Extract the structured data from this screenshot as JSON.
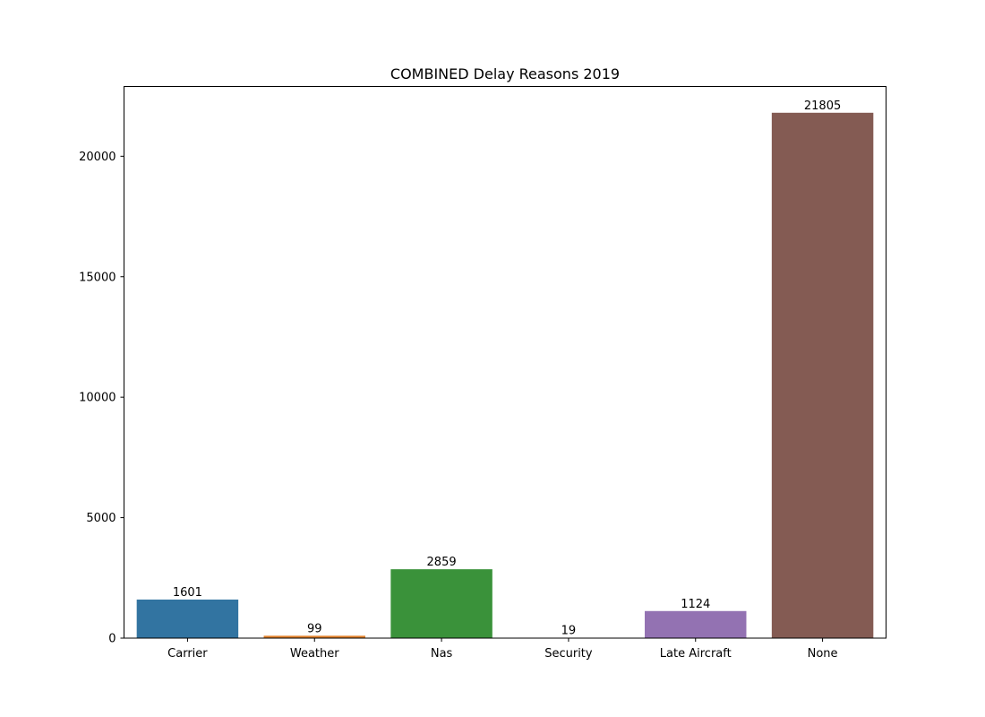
{
  "chart_data": {
    "type": "bar",
    "title": "COMBINED Delay Reasons 2019",
    "xlabel": "",
    "ylabel": "",
    "categories": [
      "Carrier",
      "Weather",
      "Nas",
      "Security",
      "Late Aircraft",
      "None"
    ],
    "values": [
      1601,
      99,
      2859,
      19,
      1124,
      21805
    ],
    "data_labels": [
      "1601",
      "99",
      "2859",
      "19",
      "1124",
      "21805"
    ],
    "colors": [
      "#3274a1",
      "#e1812c",
      "#3a923a",
      "#c03d3e",
      "#9372b2",
      "#845b53"
    ],
    "ylim": [
      0,
      22895
    ],
    "yticks": [
      0,
      5000,
      10000,
      15000,
      20000
    ],
    "ytick_labels": [
      "0",
      "5000",
      "10000",
      "15000",
      "20000"
    ],
    "grid": false,
    "legend": "none"
  }
}
